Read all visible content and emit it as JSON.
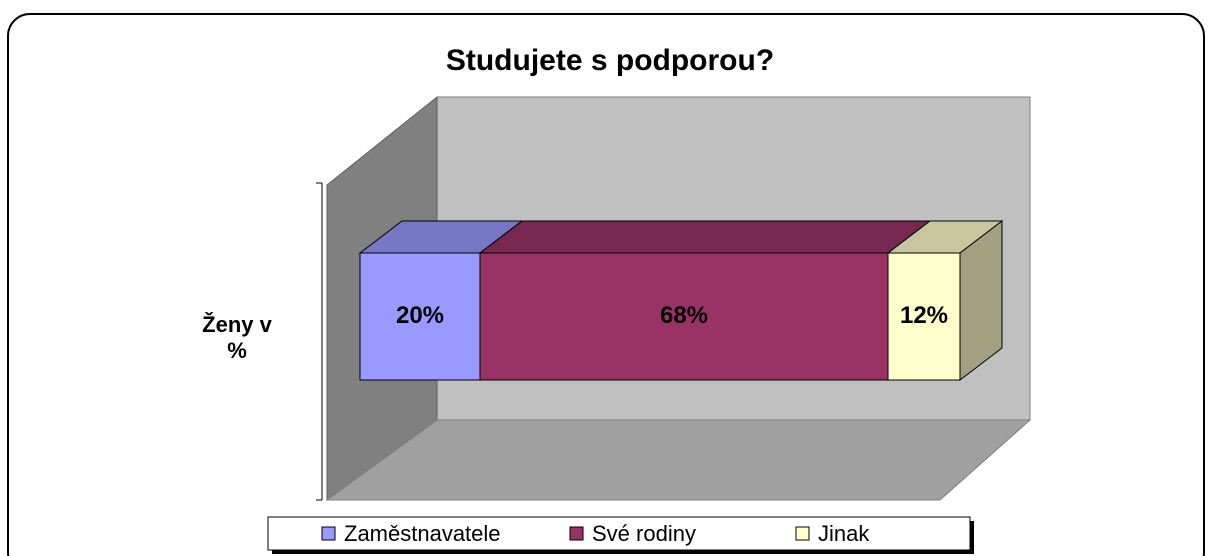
{
  "chart_data": {
    "type": "stacked-bar-3d",
    "title": "Studujete s podporou?",
    "categories": [
      "Ženy v %"
    ],
    "series": [
      {
        "name": "Zaměstnavatele",
        "color": "#9999ff",
        "values": [
          20
        ],
        "value_labels": [
          "20%"
        ]
      },
      {
        "name": "Své rodiny",
        "color": "#993366",
        "values": [
          68
        ],
        "value_labels": [
          "68%"
        ]
      },
      {
        "name": "Jinak",
        "color": "#ffffcc",
        "values": [
          12
        ],
        "value_labels": [
          "12%"
        ]
      }
    ],
    "xlim": [
      0,
      100
    ],
    "legend": "bottom"
  }
}
